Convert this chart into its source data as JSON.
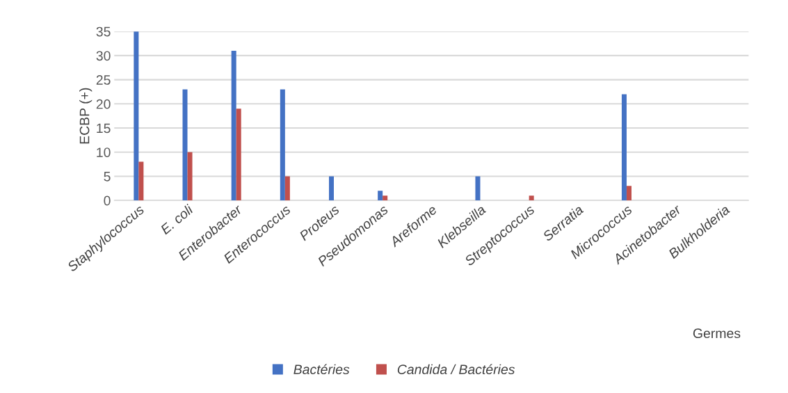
{
  "chart_data": {
    "type": "bar",
    "xlabel": "Germes",
    "ylabel": "ECBP (+)",
    "categories": [
      "Staphylococcus",
      "E. coli",
      "Enterobacter",
      "Enterococcus",
      "Proteus",
      "Pseudomonas",
      "Areforme",
      "Klebseilla",
      "Streptococcus",
      "Serratia",
      "Micrococcus",
      "Acinetobacter",
      "Bulkholderia"
    ],
    "series": [
      {
        "name": "Bactéries",
        "color": "#4472c4",
        "values": [
          35,
          23,
          31,
          23,
          5,
          2,
          0,
          5,
          0,
          0,
          22,
          0,
          0
        ]
      },
      {
        "name": "Candida / Bactéries",
        "color": "#c0504d",
        "values": [
          8,
          10,
          19,
          5,
          0,
          1,
          0,
          0,
          1,
          0,
          3,
          0,
          0
        ]
      }
    ],
    "ylim": [
      0,
      35
    ],
    "yticks": [
      0,
      5,
      10,
      15,
      20,
      25,
      30,
      35
    ],
    "grid": "y",
    "legend": "bottom"
  }
}
